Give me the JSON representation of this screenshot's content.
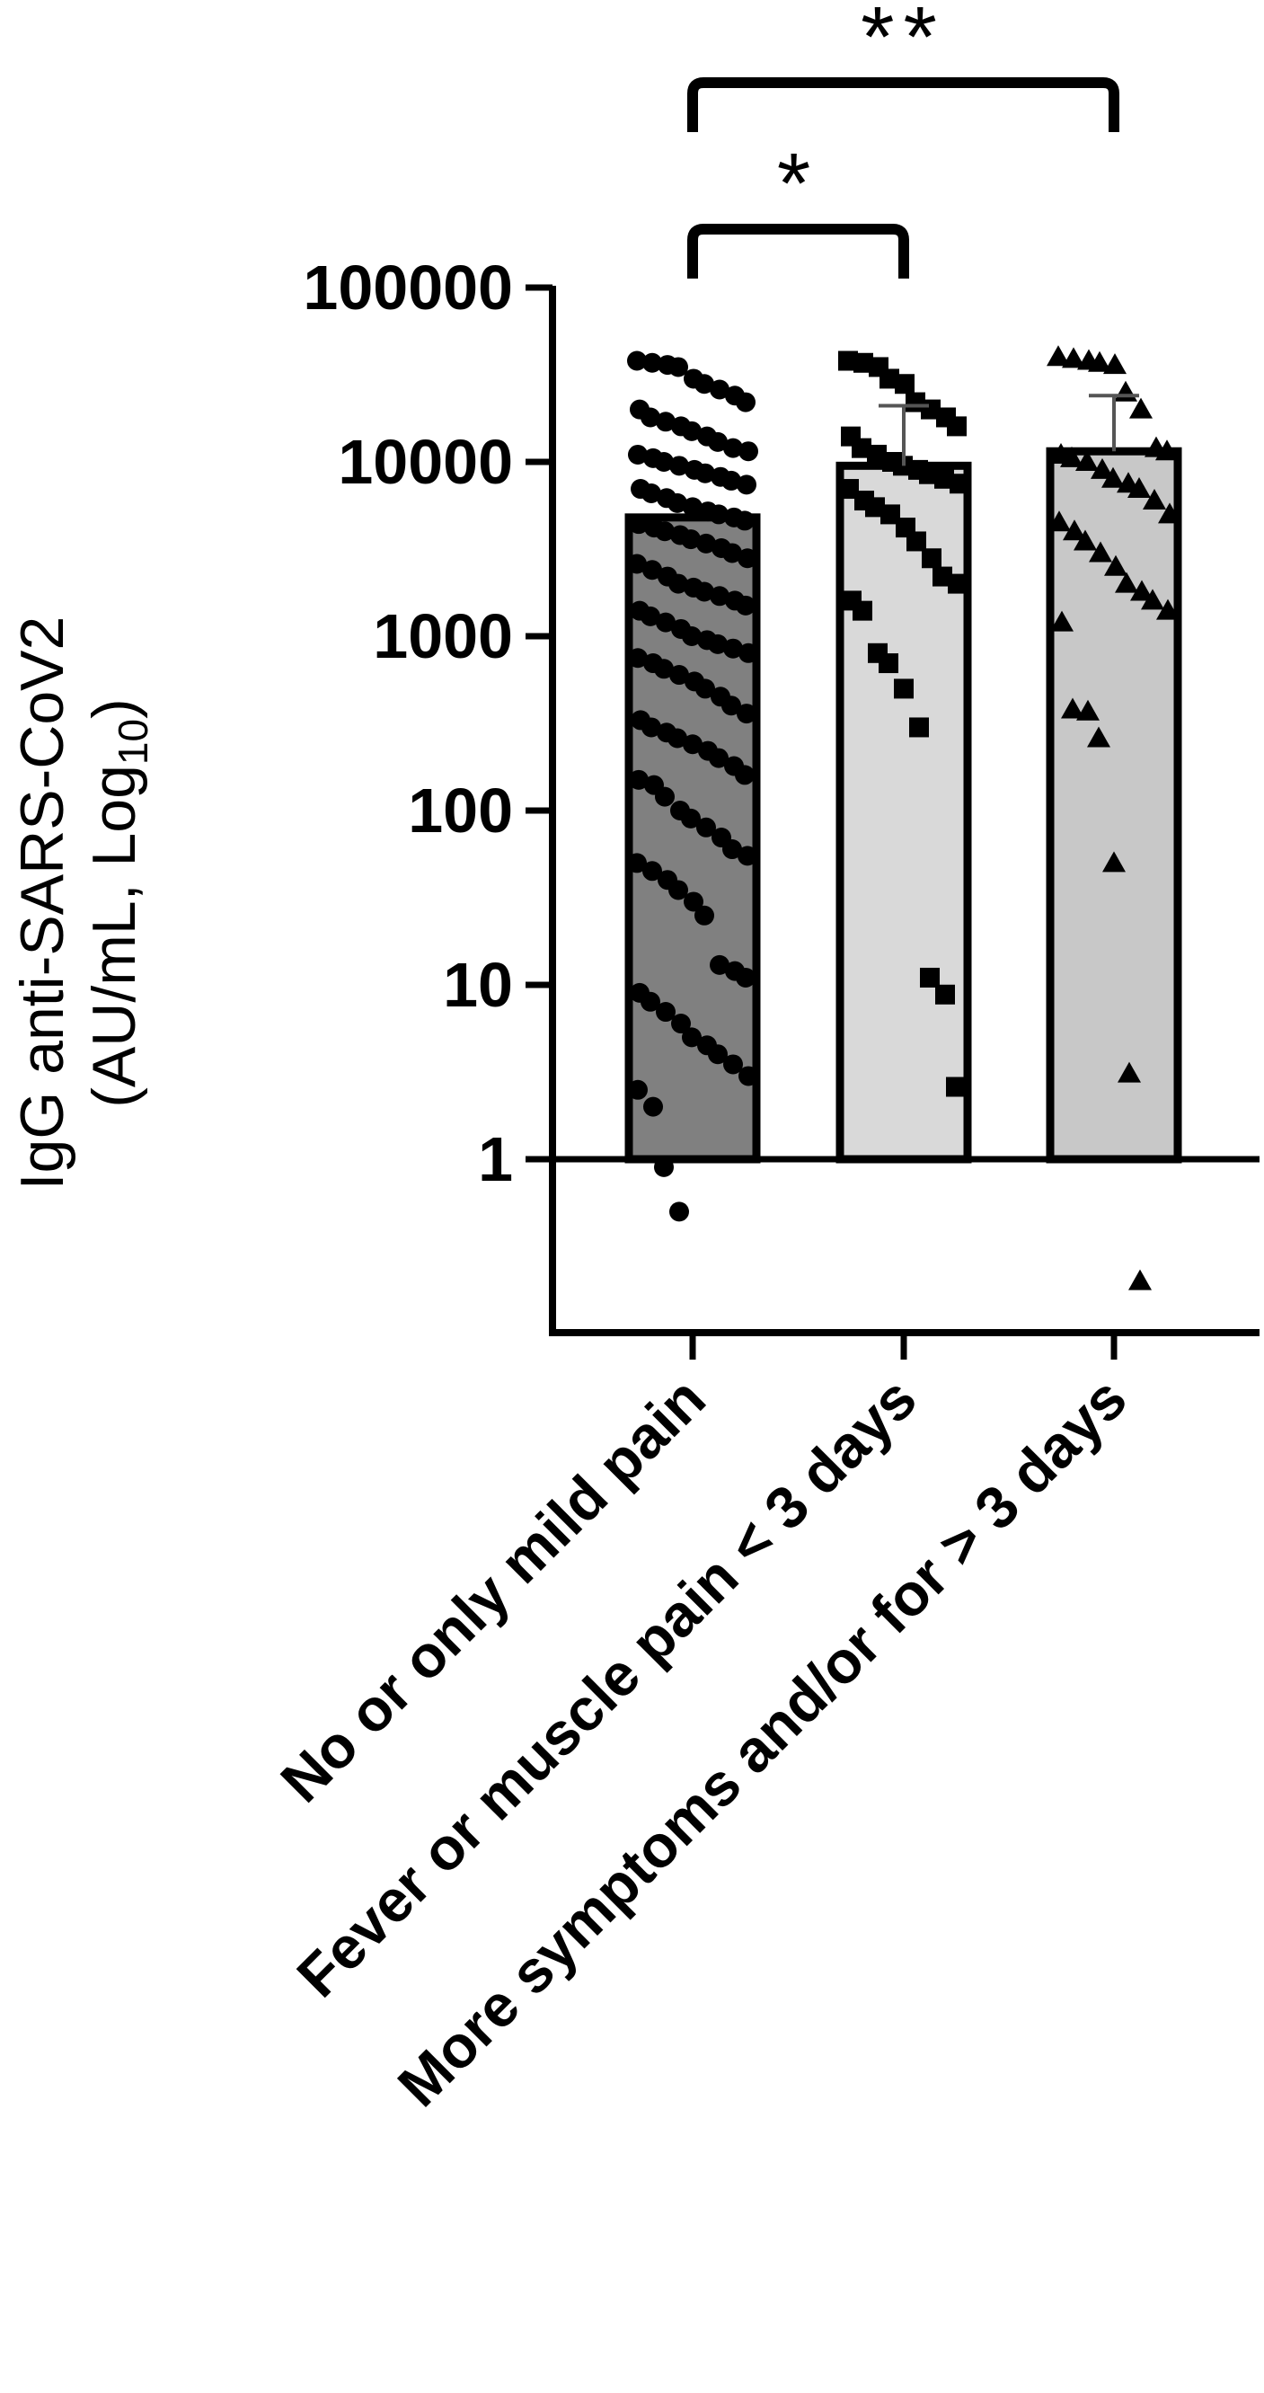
{
  "chart_data": {
    "type": "bar",
    "title": "",
    "ylabel": "IgG anti-SARS-CoV2",
    "ylabel_line2_prefix": "(AU/mL, Log",
    "ylabel_line2_sub": "10",
    "ylabel_line2_suffix": ")",
    "yscale": "log",
    "ylim": [
      0.1,
      100000
    ],
    "yticks": [
      1,
      10,
      100,
      1000,
      10000,
      100000
    ],
    "ytick_labels": [
      "1",
      "10",
      "100",
      "1000",
      "10000",
      "100000"
    ],
    "categories": [
      "No or only mild pain",
      "Fever or muscle pain < 3 days",
      "More symptoms and/or for > 3 days"
    ],
    "values": [
      4800,
      9500,
      11500
    ],
    "error_upper": [
      null,
      21000,
      24000
    ],
    "bar_colors": [
      "#808080",
      "#d9d9d9",
      "#c8c8c8"
    ],
    "marker_shapes": [
      "circle",
      "square",
      "triangle"
    ],
    "points": [
      [
        38000,
        37000,
        36000,
        35000,
        30000,
        28000,
        26000,
        24000,
        22000,
        20000,
        18000,
        17000,
        16000,
        15000,
        14000,
        13000,
        12000,
        11500,
        11000,
        10500,
        10000,
        9500,
        9000,
        8600,
        8200,
        7800,
        7400,
        7000,
        6600,
        6200,
        5800,
        5500,
        5200,
        5000,
        4800,
        4600,
        4400,
        4200,
        4000,
        3800,
        3600,
        3400,
        3200,
        3000,
        2800,
        2600,
        2400,
        2200,
        2000,
        1900,
        1800,
        1700,
        1600,
        1500,
        1400,
        1300,
        1200,
        1100,
        1000,
        950,
        900,
        850,
        800,
        750,
        700,
        650,
        600,
        550,
        500,
        450,
        400,
        360,
        330,
        300,
        280,
        260,
        240,
        220,
        200,
        180,
        160,
        150,
        140,
        120,
        100,
        90,
        80,
        70,
        60,
        55,
        50,
        45,
        40,
        35,
        30,
        25,
        13,
        12,
        11,
        9,
        8,
        7,
        6,
        5,
        4.5,
        4,
        3.5,
        3,
        2.5,
        2,
        0.9,
        0.5
      ],
      [
        38000,
        37000,
        35000,
        30000,
        28000,
        22000,
        20000,
        18000,
        16000,
        14000,
        12000,
        11000,
        10000,
        9500,
        9000,
        8500,
        8000,
        7500,
        7000,
        6000,
        5500,
        5000,
        4200,
        3500,
        2800,
        2200,
        2000,
        1600,
        1400,
        800,
        700,
        500,
        300,
        11,
        8.8,
        2.6
      ],
      [
        40000,
        39000,
        38000,
        37000,
        36000,
        25000,
        20000,
        12000,
        11500,
        11000,
        10500,
        10000,
        9000,
        8000,
        7500,
        7000,
        6000,
        5000,
        4500,
        4000,
        3500,
        3000,
        2500,
        2000,
        1800,
        1600,
        1400,
        1200,
        380,
        370,
        260,
        50,
        3.1,
        0.2
      ]
    ],
    "annotations": [
      {
        "label": "*",
        "from": 0,
        "to": 1
      },
      {
        "label": "**",
        "from": 0,
        "to": 2
      }
    ],
    "legend": "none",
    "grid": false
  }
}
